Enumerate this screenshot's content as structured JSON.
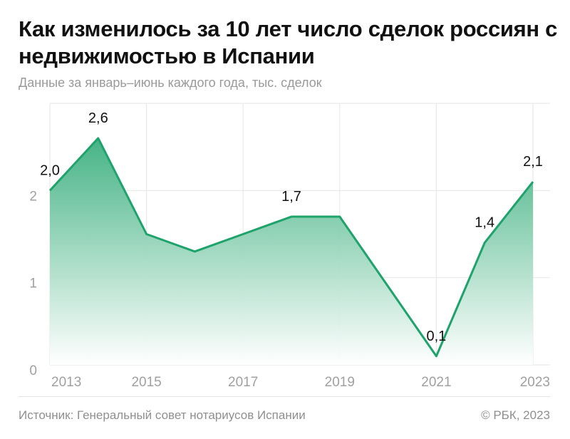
{
  "title": "Как изменилось за 10 лет число сделок россиян с недвижимостью в Испании",
  "subtitle": "Данные за январь–июнь каждого года, тыс. сделок",
  "source": "Источник: Генеральный совет нотариусов Испании",
  "copyright": "© РБК, 2023",
  "colors": {
    "line": "#1ea36b",
    "fill_top": "#1ea36b",
    "fill_bottom": "#ffffff",
    "grid": "#e6e6e6",
    "axis_text": "#a0a0a0",
    "label_text": "#111111"
  },
  "chart_data": {
    "type": "area",
    "x": [
      2013,
      2014,
      2015,
      2016,
      2017,
      2018,
      2019,
      2020,
      2021,
      2022,
      2023
    ],
    "series": [
      {
        "values": [
          2.0,
          2.6,
          1.5,
          1.3,
          1.5,
          1.7,
          1.7,
          0.9,
          0.1,
          1.4,
          2.1
        ]
      }
    ],
    "data_labels": [
      {
        "x": 2013,
        "text": "2,0"
      },
      {
        "x": 2014,
        "text": "2,6"
      },
      {
        "x": 2018,
        "text": "1,7"
      },
      {
        "x": 2021,
        "text": "0,1"
      },
      {
        "x": 2022,
        "text": "1,4"
      },
      {
        "x": 2023,
        "text": "2,1"
      }
    ],
    "x_ticks": [
      {
        "value": 2013,
        "label": "2013"
      },
      {
        "value": 2015,
        "label": "2015"
      },
      {
        "value": 2017,
        "label": "2017"
      },
      {
        "value": 2019,
        "label": "2019"
      },
      {
        "value": 2021,
        "label": "2021"
      },
      {
        "value": 2023,
        "label": "2023"
      }
    ],
    "y_ticks": [
      {
        "value": 0,
        "label": "0"
      },
      {
        "value": 1,
        "label": "1"
      },
      {
        "value": 2,
        "label": "2"
      }
    ],
    "xlim": [
      2013,
      2023
    ],
    "ylim": [
      0,
      3
    ],
    "grid": true,
    "xlabel": "",
    "ylabel": ""
  }
}
